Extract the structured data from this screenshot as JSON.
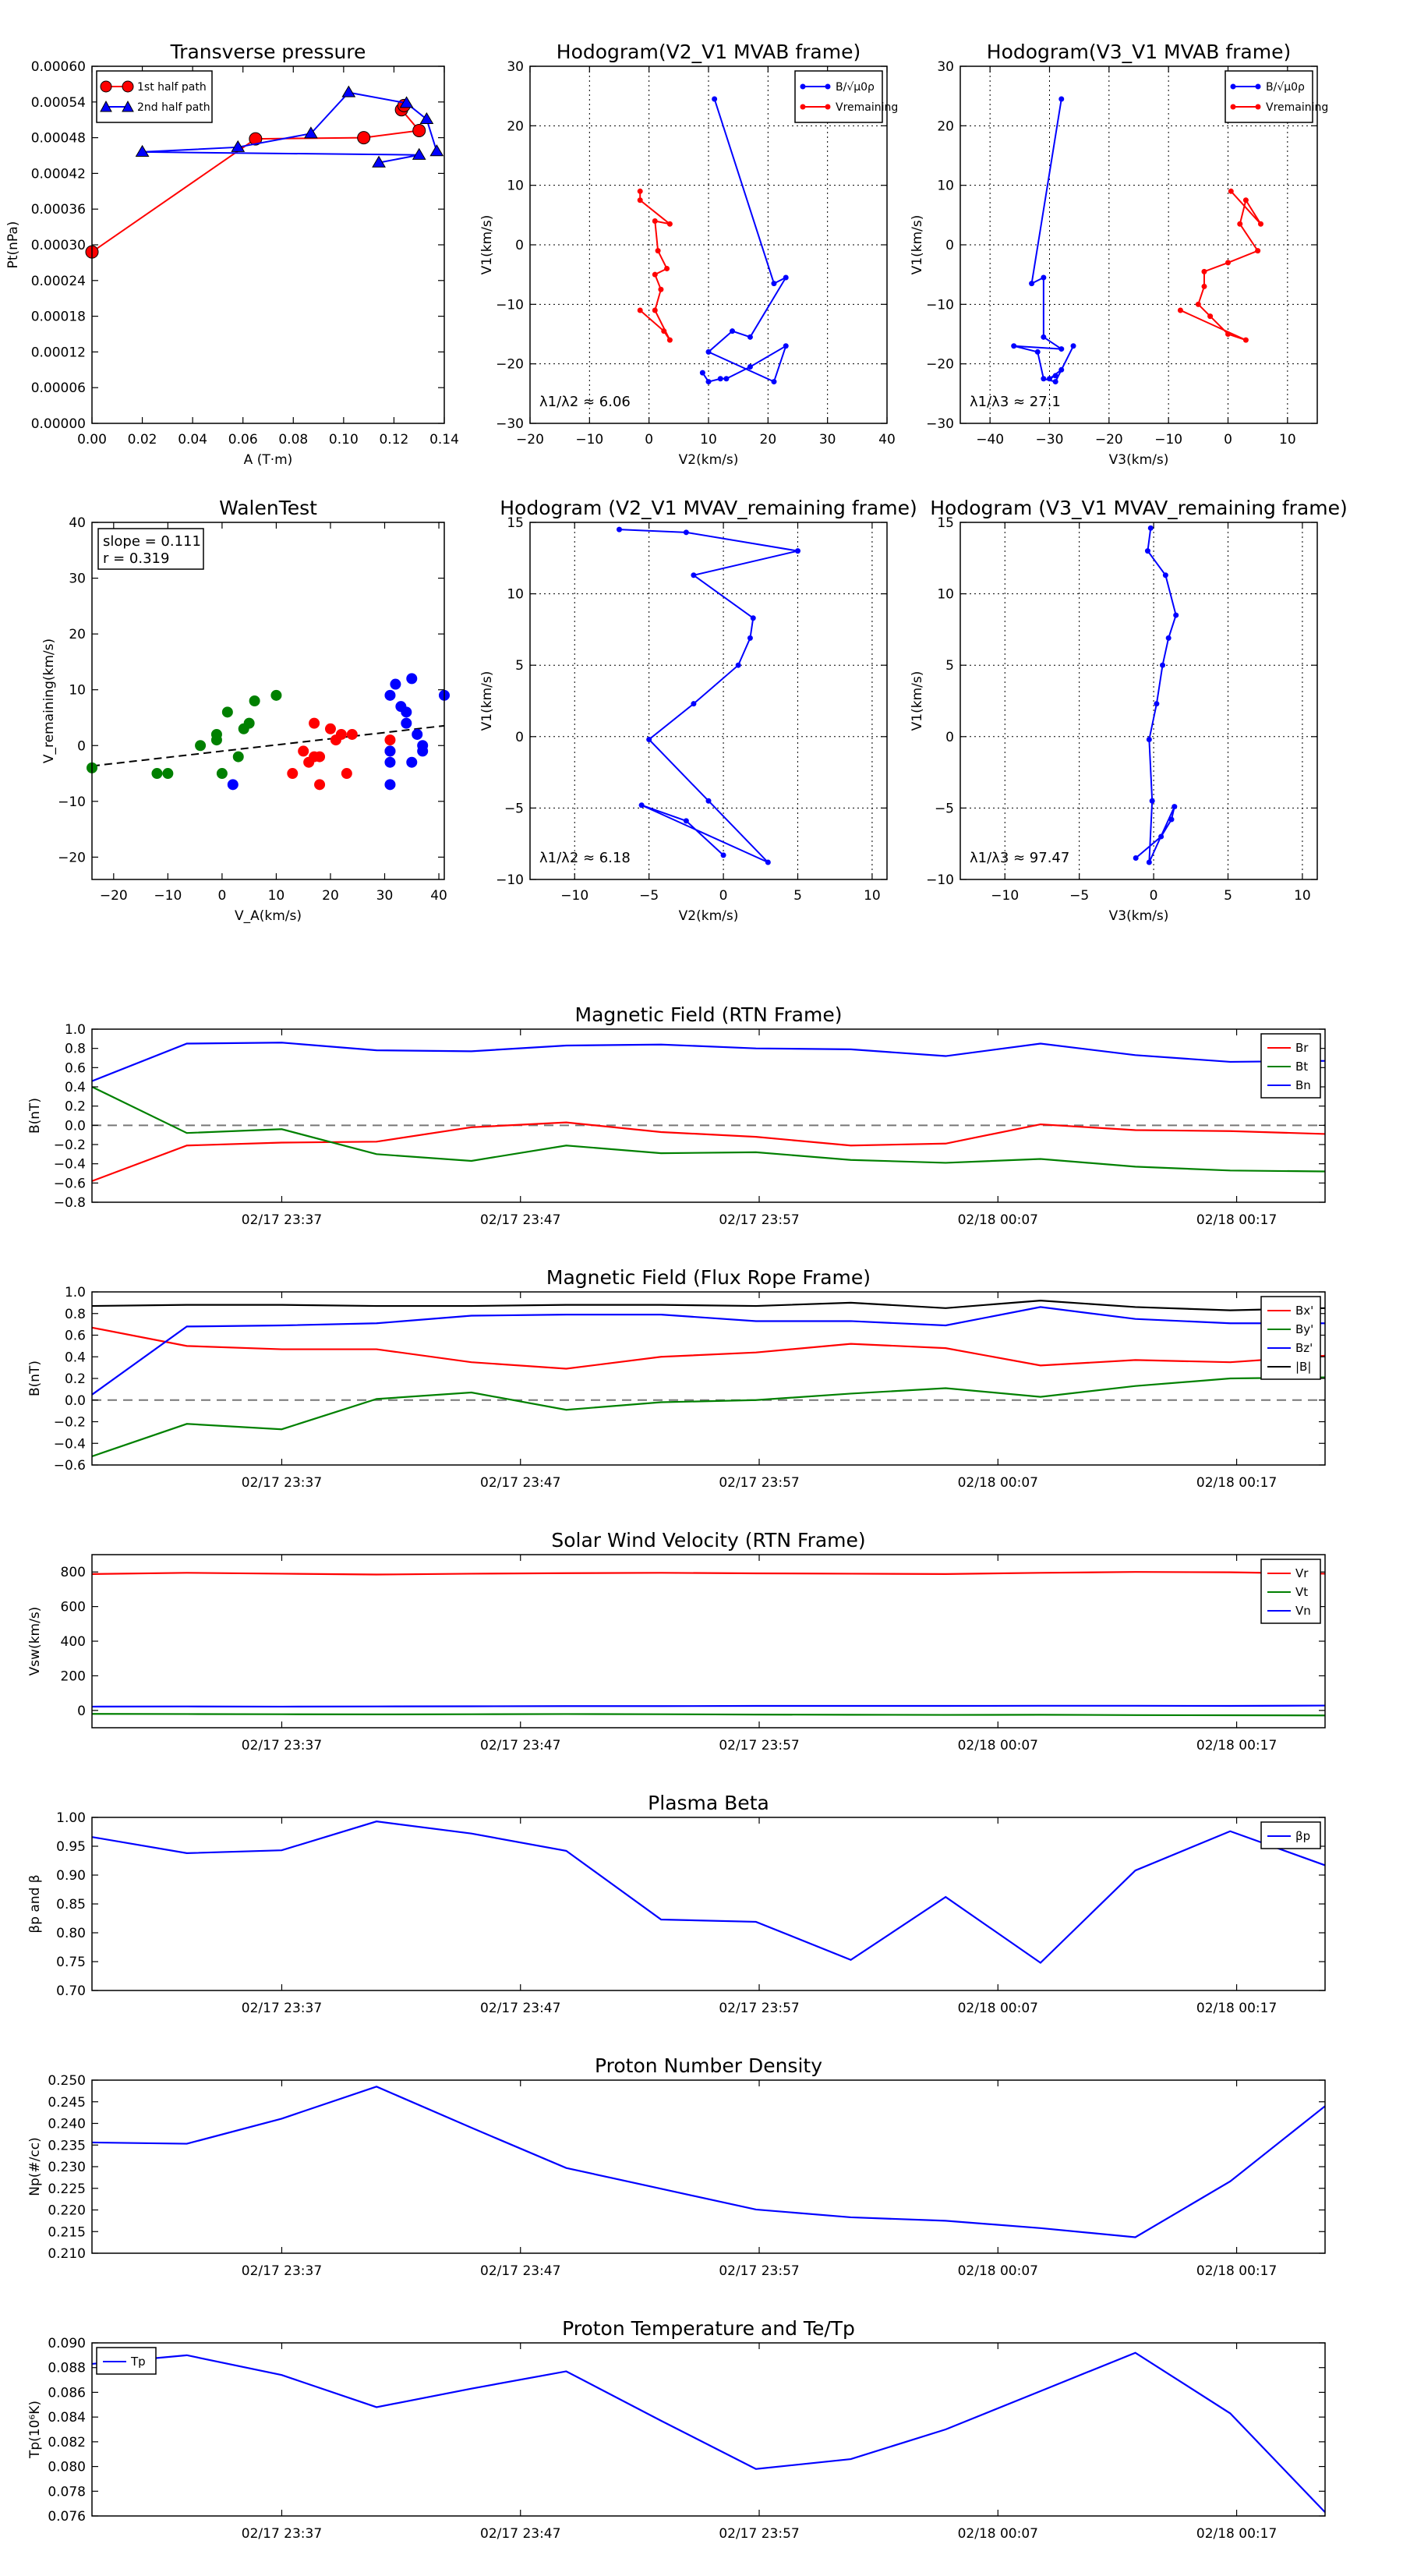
{
  "chart_data": [
    {
      "id": "p1",
      "type": "line",
      "title": "Transverse pressure",
      "xlabel": "A (T·m)",
      "ylabel": "Pt(nPa)",
      "xlim": [
        0,
        0.14
      ],
      "ylim": [
        0,
        0.0006
      ],
      "xticks": [
        0,
        0.02,
        0.04,
        0.06,
        0.08,
        0.1,
        0.12,
        0.14
      ],
      "xtick_labels": [
        "0.00",
        "0.02",
        "0.04",
        "0.06",
        "0.08",
        "0.10",
        "0.12",
        "0.14"
      ],
      "yticks": [
        0,
        6e-05,
        0.00012,
        0.00018,
        0.00024,
        0.0003,
        0.00036,
        0.00042,
        0.00048,
        0.00054,
        0.0006
      ],
      "ytick_labels": [
        "0.00000",
        "0.00006",
        "0.00012",
        "0.00018",
        "0.00024",
        "0.00030",
        "0.00036",
        "0.00042",
        "0.00048",
        "0.00054",
        "0.00060"
      ],
      "grid": false,
      "legend": "top-left",
      "series": [
        {
          "name": "1st half path",
          "color": "#ff0000",
          "marker": "circle",
          "x": [
            0.0,
            0.065,
            0.108,
            0.13,
            0.123,
            0.124
          ],
          "y": [
            0.000288,
            0.000478,
            0.00048,
            0.000492,
            0.000527,
            0.000534
          ]
        },
        {
          "name": "2nd half path",
          "color": "#0000ff",
          "marker": "triangle",
          "x": [
            0.137,
            0.133,
            0.125,
            0.102,
            0.087,
            0.058,
            0.02,
            0.13,
            0.114
          ],
          "y": [
            0.000457,
            0.000511,
            0.000538,
            0.000556,
            0.000487,
            0.000464,
            0.000456,
            0.000451,
            0.000438
          ]
        }
      ]
    },
    {
      "id": "p2",
      "type": "line",
      "title": "Hodogram(V2_V1 MVAB frame)",
      "xlabel": "V2(km/s)",
      "ylabel": "V1(km/s)",
      "xlim": [
        -20,
        40
      ],
      "ylim": [
        -30,
        30
      ],
      "xticks": [
        -20,
        -10,
        0,
        10,
        20,
        30,
        40
      ],
      "yticks": [
        -30,
        -20,
        -10,
        0,
        10,
        20,
        30
      ],
      "grid": true,
      "legend": "top-right",
      "annotation": "λ1/λ2 ≈ 6.06",
      "series": [
        {
          "name": "B/√μ0ρ",
          "color": "#0000ff",
          "x": [
            11,
            21,
            23,
            17,
            14,
            10,
            21,
            23,
            17,
            13,
            12,
            10,
            9
          ],
          "y": [
            24.5,
            -6.5,
            -5.5,
            -15.5,
            -14.5,
            -18,
            -23,
            -17,
            -20.5,
            -22.5,
            -22.5,
            -23,
            -21.5
          ]
        },
        {
          "name": "Vremaining",
          "color": "#ff0000",
          "x": [
            -1.5,
            -1.5,
            3.5,
            1,
            1.5,
            3,
            1,
            2,
            1,
            3.5,
            2.5,
            -1.5
          ],
          "y": [
            9,
            7.5,
            3.5,
            4,
            -1,
            -4,
            -5,
            -7.5,
            -11,
            -16,
            -14.5,
            -11
          ]
        }
      ]
    },
    {
      "id": "p3",
      "type": "line",
      "title": "Hodogram(V3_V1 MVAB frame)",
      "xlabel": "V3(km/s)",
      "ylabel": "V1(km/s)",
      "xlim": [
        -45,
        15
      ],
      "ylim": [
        -30,
        30
      ],
      "xticks": [
        -40,
        -30,
        -20,
        -10,
        0,
        10
      ],
      "yticks": [
        -30,
        -20,
        -10,
        0,
        10,
        20,
        30
      ],
      "grid": true,
      "legend": "top-right",
      "annotation": "λ1/λ3 ≈ 27.1",
      "series": [
        {
          "name": "B/√μ0ρ",
          "color": "#0000ff",
          "x": [
            -28,
            -33,
            -31,
            -31,
            -28,
            -36,
            -32,
            -31,
            -29,
            -26,
            -28,
            -30,
            -29
          ],
          "y": [
            24.5,
            -6.5,
            -5.5,
            -15.5,
            -17.5,
            -17,
            -18,
            -22.5,
            -23,
            -17,
            -21,
            -22.5,
            -22
          ]
        },
        {
          "name": "Vremaining",
          "color": "#ff0000",
          "x": [
            0.5,
            5.5,
            3,
            2,
            5,
            0,
            -4,
            -4,
            -5,
            -3,
            0,
            3,
            -8
          ],
          "y": [
            9,
            3.5,
            7.5,
            3.5,
            -1,
            -3,
            -4.5,
            -7,
            -10,
            -12,
            -15,
            -16,
            -11
          ]
        }
      ]
    },
    {
      "id": "p4",
      "type": "scatter",
      "title": "WalenTest",
      "xlabel": "V_A(km/s)",
      "ylabel": "V_remaining(km/s)",
      "xlim": [
        -24,
        41
      ],
      "ylim": [
        -24,
        40
      ],
      "xticks": [
        -20,
        -10,
        0,
        10,
        20,
        30,
        40
      ],
      "yticks": [
        -20,
        -10,
        0,
        10,
        20,
        30,
        40
      ],
      "grid": false,
      "annotation": [
        "slope = 0.111",
        "r = 0.319"
      ],
      "fit_line": {
        "slope": 0.111,
        "intercept": -1.0,
        "x": [
          -24,
          41
        ]
      },
      "series": [
        {
          "name": "",
          "color": "#008000",
          "x": [
            -24,
            -12,
            -10,
            -4,
            -1,
            -1,
            0,
            1,
            3,
            4,
            5,
            6,
            10
          ],
          "y": [
            -4,
            -5,
            -5,
            0,
            1,
            2,
            -5,
            6,
            -2,
            3,
            4,
            8,
            9
          ]
        },
        {
          "name": "",
          "color": "#ff0000",
          "x": [
            13,
            15,
            16,
            17,
            18,
            18,
            20,
            21,
            22,
            23,
            24,
            17,
            31,
            31
          ],
          "y": [
            -5,
            -1,
            -3,
            4,
            -2,
            -7,
            3,
            1,
            2,
            -5,
            2,
            -2,
            1,
            -1
          ]
        },
        {
          "name": "",
          "color": "#0000ff",
          "x": [
            2,
            31,
            31,
            31,
            32,
            33,
            34,
            34,
            35,
            35,
            36,
            37,
            37,
            41,
            31
          ],
          "y": [
            -7,
            9,
            -1,
            -3,
            11,
            7,
            6,
            4,
            12,
            -3,
            2,
            -1,
            0,
            9,
            -7
          ]
        }
      ]
    },
    {
      "id": "p5",
      "type": "line",
      "title": "Hodogram (V2_V1 MVAV_remaining frame)",
      "xlabel": "V2(km/s)",
      "ylabel": "V1(km/s)",
      "xlim": [
        -13,
        11
      ],
      "ylim": [
        -10,
        15
      ],
      "xticks": [
        -10,
        -5,
        0,
        5,
        10
      ],
      "yticks": [
        -10,
        -5,
        0,
        5,
        10,
        15
      ],
      "grid": true,
      "annotation": "λ1/λ2 ≈ 6.18",
      "series": [
        {
          "name": "",
          "color": "#0000ff",
          "x": [
            -7,
            -2.5,
            5,
            -2,
            2,
            1.8,
            1.0,
            -2,
            -5,
            -1,
            3,
            -5.5,
            -2.5,
            0
          ],
          "y": [
            14.5,
            14.3,
            13,
            11.3,
            8.3,
            6.9,
            5,
            2.3,
            -0.2,
            -4.5,
            -8.8,
            -4.8,
            -5.9,
            -8.3
          ]
        }
      ]
    },
    {
      "id": "p6",
      "type": "line",
      "title": "Hodogram (V3_V1 MVAV_remaining frame)",
      "xlabel": "V3(km/s)",
      "ylabel": "V1(km/s)",
      "xlim": [
        -13,
        11
      ],
      "ylim": [
        -10,
        15
      ],
      "xticks": [
        -10,
        -5,
        0,
        5,
        10
      ],
      "yticks": [
        -10,
        -5,
        0,
        5,
        10,
        15
      ],
      "grid": true,
      "annotation": "λ1/λ3 ≈ 97.47",
      "series": [
        {
          "name": "",
          "color": "#0000ff",
          "x": [
            -0.2,
            -0.4,
            0.8,
            1.5,
            1.0,
            0.6,
            0.2,
            -0.3,
            -0.1,
            -0.3,
            1.4,
            1.2,
            0.5,
            -1.2
          ],
          "y": [
            14.6,
            13.0,
            11.3,
            8.5,
            6.9,
            5.0,
            2.3,
            -0.2,
            -4.5,
            -8.8,
            -4.9,
            -5.8,
            -7.0,
            -8.5
          ]
        }
      ]
    },
    {
      "id": "t1",
      "type": "line",
      "title": "Magnetic Field (RTN Frame)",
      "ylabel": "B(nT)",
      "xlabel": "",
      "ylim": [
        -0.8,
        1.0
      ],
      "yticks": [
        -0.8,
        -0.6,
        -0.4,
        -0.2,
        0.0,
        0.2,
        0.4,
        0.6,
        0.8,
        1.0
      ],
      "ytick_labels": [
        "−0.8",
        "−0.6",
        "−0.4",
        "−0.2",
        "0.0",
        "0.2",
        "0.4",
        "0.6",
        "0.8",
        "1.0"
      ],
      "xtick_labels": [
        "02/17 23:37",
        "02/17 23:47",
        "02/17 23:57",
        "02/18 00:07",
        "02/18 00:17"
      ],
      "zero_line": true,
      "legend": "top-right",
      "series": [
        {
          "name": "Br",
          "color": "#ff0000",
          "values": [
            -0.58,
            -0.21,
            -0.18,
            -0.17,
            -0.02,
            0.03,
            -0.07,
            -0.12,
            -0.21,
            -0.19,
            0.01,
            -0.05,
            -0.06,
            -0.09
          ]
        },
        {
          "name": "Bt",
          "color": "#008000",
          "values": [
            0.4,
            -0.08,
            -0.04,
            -0.3,
            -0.37,
            -0.21,
            -0.29,
            -0.28,
            -0.36,
            -0.39,
            -0.35,
            -0.43,
            -0.47,
            -0.48
          ]
        },
        {
          "name": "Bn",
          "color": "#0000ff",
          "values": [
            0.46,
            0.85,
            0.86,
            0.78,
            0.77,
            0.83,
            0.84,
            0.8,
            0.79,
            0.72,
            0.85,
            0.73,
            0.66,
            0.67
          ]
        }
      ]
    },
    {
      "id": "t2",
      "type": "line",
      "title": "Magnetic Field (Flux Rope Frame)",
      "ylabel": "B(nT)",
      "xlabel": "",
      "ylim": [
        -0.6,
        1.0
      ],
      "yticks": [
        -0.6,
        -0.4,
        -0.2,
        0.0,
        0.2,
        0.4,
        0.6,
        0.8,
        1.0
      ],
      "ytick_labels": [
        "−0.6",
        "−0.4",
        "−0.2",
        "0.0",
        "0.2",
        "0.4",
        "0.6",
        "0.8",
        "1.0"
      ],
      "xtick_labels": [
        "02/17 23:37",
        "02/17 23:47",
        "02/17 23:57",
        "02/18 00:07",
        "02/18 00:17"
      ],
      "zero_line": true,
      "legend": "top-right",
      "series": [
        {
          "name": "Bx'",
          "color": "#ff0000",
          "values": [
            0.67,
            0.5,
            0.47,
            0.47,
            0.35,
            0.29,
            0.4,
            0.44,
            0.52,
            0.48,
            0.32,
            0.37,
            0.35,
            0.41
          ]
        },
        {
          "name": "By'",
          "color": "#008000",
          "values": [
            -0.52,
            -0.22,
            -0.27,
            0.01,
            0.07,
            -0.09,
            -0.02,
            0.0,
            0.06,
            0.11,
            0.03,
            0.13,
            0.2,
            0.21
          ]
        },
        {
          "name": "Bz'",
          "color": "#0000ff",
          "values": [
            0.05,
            0.68,
            0.69,
            0.71,
            0.78,
            0.79,
            0.79,
            0.73,
            0.73,
            0.69,
            0.86,
            0.75,
            0.71,
            0.71
          ]
        },
        {
          "name": "|B|",
          "color": "#000000",
          "values": [
            0.87,
            0.88,
            0.88,
            0.87,
            0.87,
            0.88,
            0.88,
            0.87,
            0.9,
            0.85,
            0.92,
            0.86,
            0.83,
            0.85
          ]
        }
      ]
    },
    {
      "id": "t3",
      "type": "line",
      "title": "Solar Wind Velocity (RTN Frame)",
      "ylabel": "Vsw(km/s)",
      "xlabel": "",
      "ylim": [
        -100,
        900
      ],
      "yticks": [
        0,
        200,
        400,
        600,
        800
      ],
      "ytick_labels": [
        "0",
        "200",
        "400",
        "600",
        "800"
      ],
      "xtick_labels": [
        "02/17 23:37",
        "02/17 23:47",
        "02/17 23:57",
        "02/18 00:07",
        "02/18 00:17"
      ],
      "zero_line": false,
      "legend": "top-right",
      "series": [
        {
          "name": "Vr",
          "color": "#ff0000",
          "values": [
            788,
            795,
            790,
            785,
            790,
            793,
            795,
            792,
            790,
            788,
            795,
            800,
            798,
            790
          ]
        },
        {
          "name": "Vt",
          "color": "#008000",
          "values": [
            -20,
            -21,
            -22,
            -23,
            -22,
            -21,
            -22,
            -24,
            -25,
            -26,
            -25,
            -27,
            -28,
            -29
          ]
        },
        {
          "name": "Vn",
          "color": "#0000ff",
          "values": [
            22,
            23,
            22,
            23,
            24,
            25,
            25,
            26,
            26,
            26,
            27,
            27,
            26,
            28
          ]
        }
      ]
    },
    {
      "id": "t4",
      "type": "line",
      "title": "Plasma Beta",
      "ylabel": "βp and β",
      "xlabel": "",
      "ylim": [
        0.7,
        1.0
      ],
      "yticks": [
        0.7,
        0.75,
        0.8,
        0.85,
        0.9,
        0.95,
        1.0
      ],
      "ytick_labels": [
        "0.70",
        "0.75",
        "0.80",
        "0.85",
        "0.90",
        "0.95",
        "1.00"
      ],
      "xtick_labels": [
        "02/17 23:37",
        "02/17 23:47",
        "02/17 23:57",
        "02/18 00:07",
        "02/18 00:17"
      ],
      "zero_line": false,
      "legend": "top-right",
      "series": [
        {
          "name": "βp",
          "color": "#0000ff",
          "values": [
            0.966,
            0.938,
            0.943,
            0.993,
            0.972,
            0.942,
            0.823,
            0.819,
            0.753,
            0.862,
            0.748,
            0.908,
            0.976,
            0.917
          ]
        },
        {
          "name": "",
          "color": "#000000",
          "values": []
        }
      ]
    },
    {
      "id": "t5",
      "type": "line",
      "title": "Proton Number Density",
      "ylabel": "Np(#/cc)",
      "xlabel": "",
      "ylim": [
        0.21,
        0.25
      ],
      "yticks": [
        0.21,
        0.215,
        0.22,
        0.225,
        0.23,
        0.235,
        0.24,
        0.245,
        0.25
      ],
      "ytick_labels": [
        "0.210",
        "0.215",
        "0.220",
        "0.225",
        "0.230",
        "0.235",
        "0.240",
        "0.245",
        "0.250"
      ],
      "xtick_labels": [
        "02/17 23:37",
        "02/17 23:47",
        "02/17 23:57",
        "02/18 00:07",
        "02/18 00:17"
      ],
      "zero_line": false,
      "series": [
        {
          "name": "",
          "color": "#0000ff",
          "values": [
            0.2356,
            0.2353,
            0.2411,
            0.2485,
            0.239,
            0.2297,
            0.2249,
            0.2201,
            0.2183,
            0.2175,
            0.2158,
            0.2137,
            0.2266,
            0.244
          ]
        }
      ]
    },
    {
      "id": "t6",
      "type": "line",
      "title": "Proton Temperature and Te/Tp",
      "ylabel": "Tp(10⁶K)",
      "xlabel": "",
      "ylim": [
        0.076,
        0.09
      ],
      "yticks": [
        0.076,
        0.078,
        0.08,
        0.082,
        0.084,
        0.086,
        0.088,
        0.09
      ],
      "ytick_labels": [
        "0.076",
        "0.078",
        "0.080",
        "0.082",
        "0.084",
        "0.086",
        "0.088",
        "0.090"
      ],
      "xtick_labels": [
        "02/17 23:37",
        "02/17 23:47",
        "02/17 23:57",
        "02/18 00:07",
        "02/18 00:17"
      ],
      "zero_line": false,
      "legend": "top-left",
      "series": [
        {
          "name": "Tp",
          "color": "#0000ff",
          "values": [
            0.0883,
            0.089,
            0.0874,
            0.0848,
            0.0863,
            0.0877,
            0.0837,
            0.0798,
            0.0806,
            0.083,
            0.0861,
            0.0892,
            0.0843,
            0.0763
          ]
        }
      ]
    }
  ]
}
